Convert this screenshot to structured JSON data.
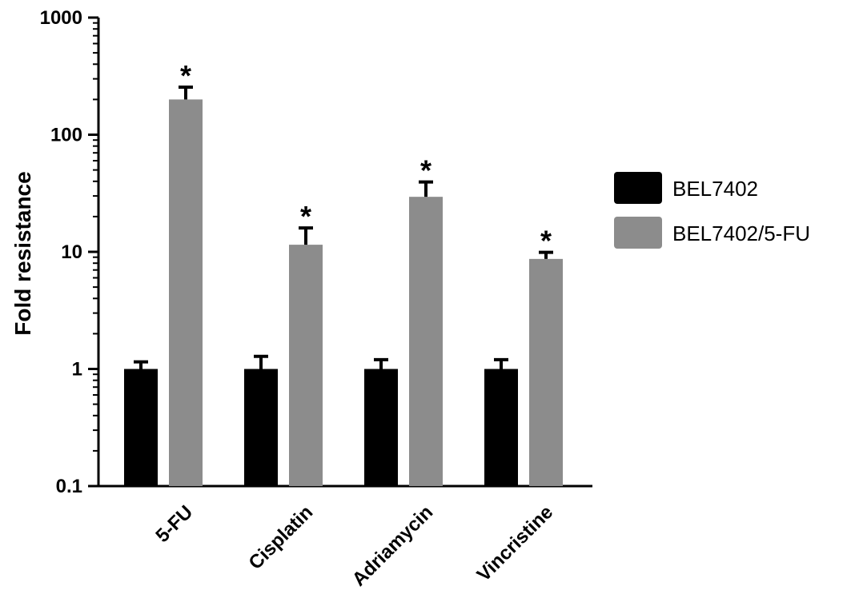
{
  "chart_data": {
    "type": "bar",
    "ylabel": "Fold resistance",
    "xlabel": "",
    "yscale": "log",
    "ylim": [
      0.1,
      1000
    ],
    "yticks": [
      0.1,
      1,
      10,
      100,
      1000
    ],
    "ytick_labels": [
      "0.1",
      "1",
      "10",
      "100",
      "1000"
    ],
    "categories": [
      "5-FU",
      "Cisplatin",
      "Adriamycin",
      "Vincristine"
    ],
    "series": [
      {
        "name": "BEL7402",
        "color": "#000000",
        "values": [
          1,
          1,
          1,
          1
        ],
        "error": [
          0.15,
          0.28,
          0.2,
          0.2
        ],
        "significance": [
          "",
          "",
          "",
          ""
        ]
      },
      {
        "name": "BEL7402/5-FU",
        "color": "#8c8c8c",
        "values": [
          200,
          11.5,
          29.5,
          8.7
        ],
        "error": [
          55,
          4.5,
          10,
          1.2
        ],
        "significance": [
          "*",
          "*",
          "*",
          "*"
        ]
      }
    ],
    "legend": "right",
    "grid": false
  }
}
